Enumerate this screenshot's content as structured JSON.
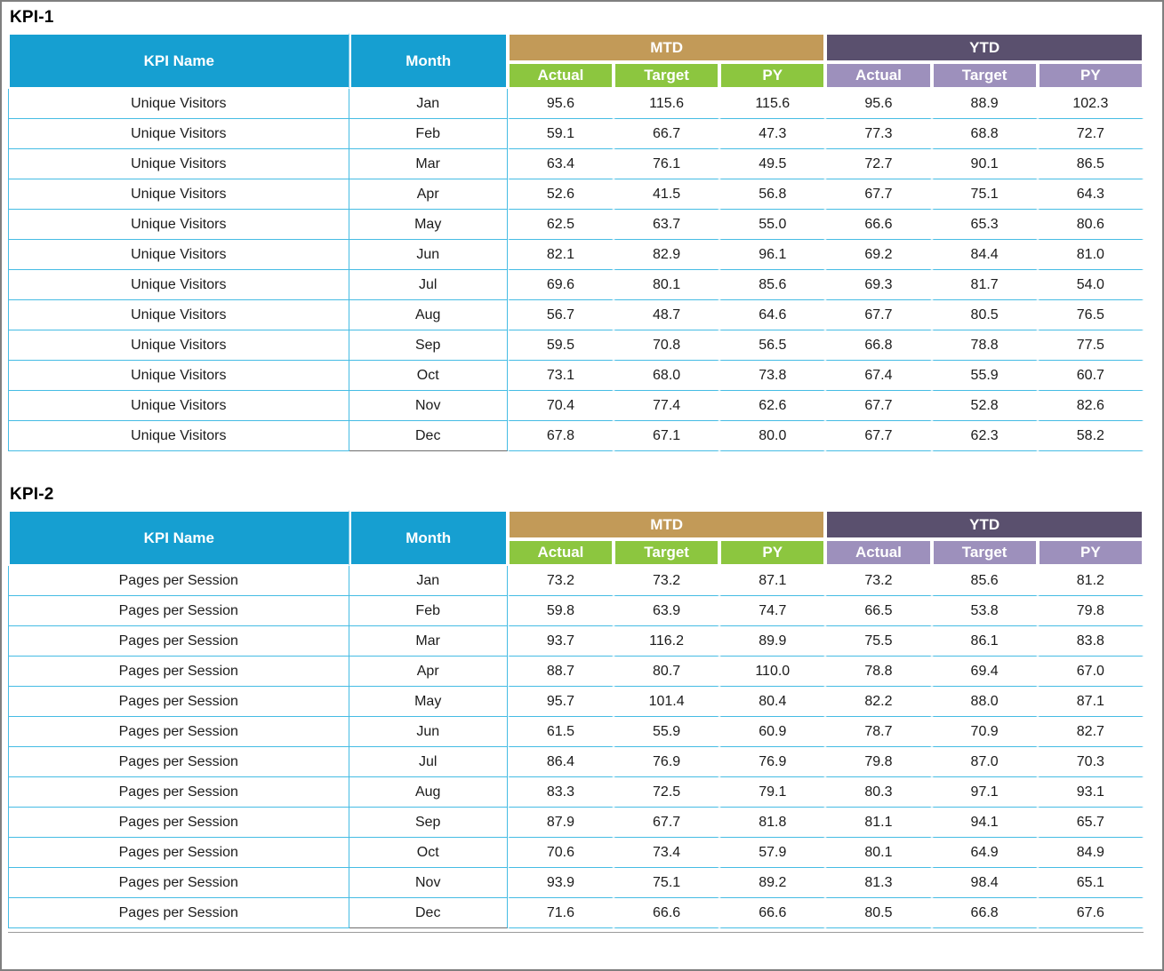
{
  "titles": {
    "kpi1": "KPI-1",
    "kpi2": "KPI-2"
  },
  "header": {
    "kpi_name": "KPI Name",
    "month": "Month",
    "mtd": "MTD",
    "ytd": "YTD",
    "subcolumns": [
      "Actual",
      "Target",
      "PY"
    ]
  },
  "colors": {
    "header_cyan": "#169FD1",
    "mtd_tan": "#C29A58",
    "mtd_sub_green": "#8CC63F",
    "ytd_purple": "#5A506E",
    "ytd_sub_purple": "#9D90BC",
    "row_line": "#45BCE4"
  },
  "chart_data": [
    {
      "type": "table",
      "title": "KPI-1",
      "kpi_name": "Unique Visitors",
      "columns": [
        "KPI Name",
        "Month",
        "MTD Actual",
        "MTD Target",
        "MTD PY",
        "YTD Actual",
        "YTD Target",
        "YTD PY"
      ],
      "rows": [
        [
          "Unique Visitors",
          "Jan",
          "95.6",
          "115.6",
          "115.6",
          "95.6",
          "88.9",
          "102.3"
        ],
        [
          "Unique Visitors",
          "Feb",
          "59.1",
          "66.7",
          "47.3",
          "77.3",
          "68.8",
          "72.7"
        ],
        [
          "Unique Visitors",
          "Mar",
          "63.4",
          "76.1",
          "49.5",
          "72.7",
          "90.1",
          "86.5"
        ],
        [
          "Unique Visitors",
          "Apr",
          "52.6",
          "41.5",
          "56.8",
          "67.7",
          "75.1",
          "64.3"
        ],
        [
          "Unique Visitors",
          "May",
          "62.5",
          "63.7",
          "55.0",
          "66.6",
          "65.3",
          "80.6"
        ],
        [
          "Unique Visitors",
          "Jun",
          "82.1",
          "82.9",
          "96.1",
          "69.2",
          "84.4",
          "81.0"
        ],
        [
          "Unique Visitors",
          "Jul",
          "69.6",
          "80.1",
          "85.6",
          "69.3",
          "81.7",
          "54.0"
        ],
        [
          "Unique Visitors",
          "Aug",
          "56.7",
          "48.7",
          "64.6",
          "67.7",
          "80.5",
          "76.5"
        ],
        [
          "Unique Visitors",
          "Sep",
          "59.5",
          "70.8",
          "56.5",
          "66.8",
          "78.8",
          "77.5"
        ],
        [
          "Unique Visitors",
          "Oct",
          "73.1",
          "68.0",
          "73.8",
          "67.4",
          "55.9",
          "60.7"
        ],
        [
          "Unique Visitors",
          "Nov",
          "70.4",
          "77.4",
          "62.6",
          "67.7",
          "52.8",
          "82.6"
        ],
        [
          "Unique Visitors",
          "Dec",
          "67.8",
          "67.1",
          "80.0",
          "67.7",
          "62.3",
          "58.2"
        ]
      ]
    },
    {
      "type": "table",
      "title": "KPI-2",
      "kpi_name": "Pages per Session",
      "columns": [
        "KPI Name",
        "Month",
        "MTD Actual",
        "MTD Target",
        "MTD PY",
        "YTD Actual",
        "YTD Target",
        "YTD PY"
      ],
      "rows": [
        [
          "Pages per Session",
          "Jan",
          "73.2",
          "73.2",
          "87.1",
          "73.2",
          "85.6",
          "81.2"
        ],
        [
          "Pages per Session",
          "Feb",
          "59.8",
          "63.9",
          "74.7",
          "66.5",
          "53.8",
          "79.8"
        ],
        [
          "Pages per Session",
          "Mar",
          "93.7",
          "116.2",
          "89.9",
          "75.5",
          "86.1",
          "83.8"
        ],
        [
          "Pages per Session",
          "Apr",
          "88.7",
          "80.7",
          "110.0",
          "78.8",
          "69.4",
          "67.0"
        ],
        [
          "Pages per Session",
          "May",
          "95.7",
          "101.4",
          "80.4",
          "82.2",
          "88.0",
          "87.1"
        ],
        [
          "Pages per Session",
          "Jun",
          "61.5",
          "55.9",
          "60.9",
          "78.7",
          "70.9",
          "82.7"
        ],
        [
          "Pages per Session",
          "Jul",
          "86.4",
          "76.9",
          "76.9",
          "79.8",
          "87.0",
          "70.3"
        ],
        [
          "Pages per Session",
          "Aug",
          "83.3",
          "72.5",
          "79.1",
          "80.3",
          "97.1",
          "93.1"
        ],
        [
          "Pages per Session",
          "Sep",
          "87.9",
          "67.7",
          "81.8",
          "81.1",
          "94.1",
          "65.7"
        ],
        [
          "Pages per Session",
          "Oct",
          "70.6",
          "73.4",
          "57.9",
          "80.1",
          "64.9",
          "84.9"
        ],
        [
          "Pages per Session",
          "Nov",
          "93.9",
          "75.1",
          "89.2",
          "81.3",
          "98.4",
          "65.1"
        ],
        [
          "Pages per Session",
          "Dec",
          "71.6",
          "66.6",
          "66.6",
          "80.5",
          "66.8",
          "67.6"
        ]
      ]
    }
  ]
}
